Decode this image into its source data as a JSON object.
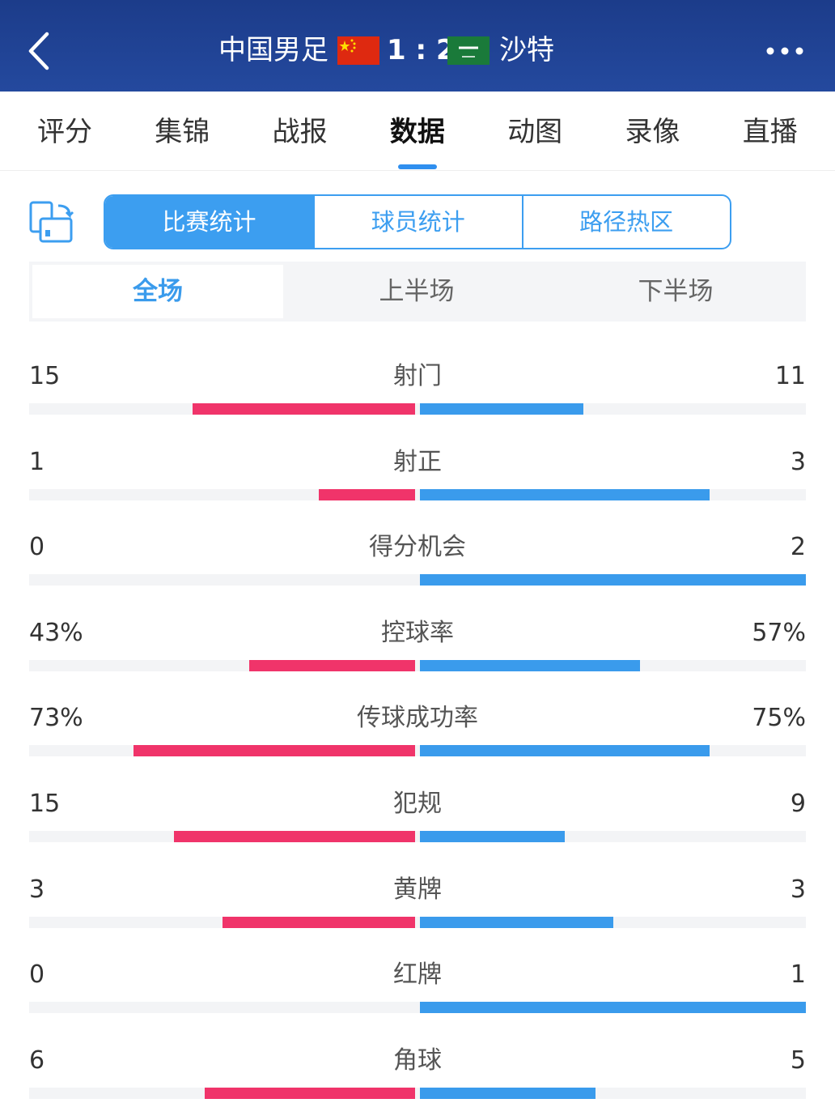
{
  "header": {
    "home_team": "中国男足",
    "home_score": 1,
    "separator": ":",
    "away_score": 2,
    "away_team": "沙特"
  },
  "tabs": {
    "items": [
      "评分",
      "集锦",
      "战报",
      "数据",
      "动图",
      "录像",
      "直播"
    ],
    "active": 3
  },
  "segments": {
    "items": [
      "比赛统计",
      "球员统计",
      "路径热区"
    ],
    "active": 0
  },
  "periods": {
    "items": [
      "全场",
      "上半场",
      "下半场"
    ],
    "active": 0
  },
  "stats": {
    "rows": [
      {
        "label": "射门",
        "home": 15,
        "away": 11
      },
      {
        "label": "射正",
        "home": 1,
        "away": 3
      },
      {
        "label": "得分机会",
        "home": 0,
        "away": 2
      },
      {
        "label": "控球率",
        "home": 43,
        "home_label": "43%",
        "away": 57,
        "away_label": "57%"
      },
      {
        "label": "传球成功率",
        "home": 73,
        "home_label": "73%",
        "away": 75,
        "away_label": "75%"
      },
      {
        "label": "犯规",
        "home": 15,
        "away": 9
      },
      {
        "label": "黄牌",
        "home": 3,
        "away": 3
      },
      {
        "label": "红牌",
        "home": 0,
        "away": 1
      },
      {
        "label": "角球",
        "home": 6,
        "away": 5
      }
    ]
  }
}
